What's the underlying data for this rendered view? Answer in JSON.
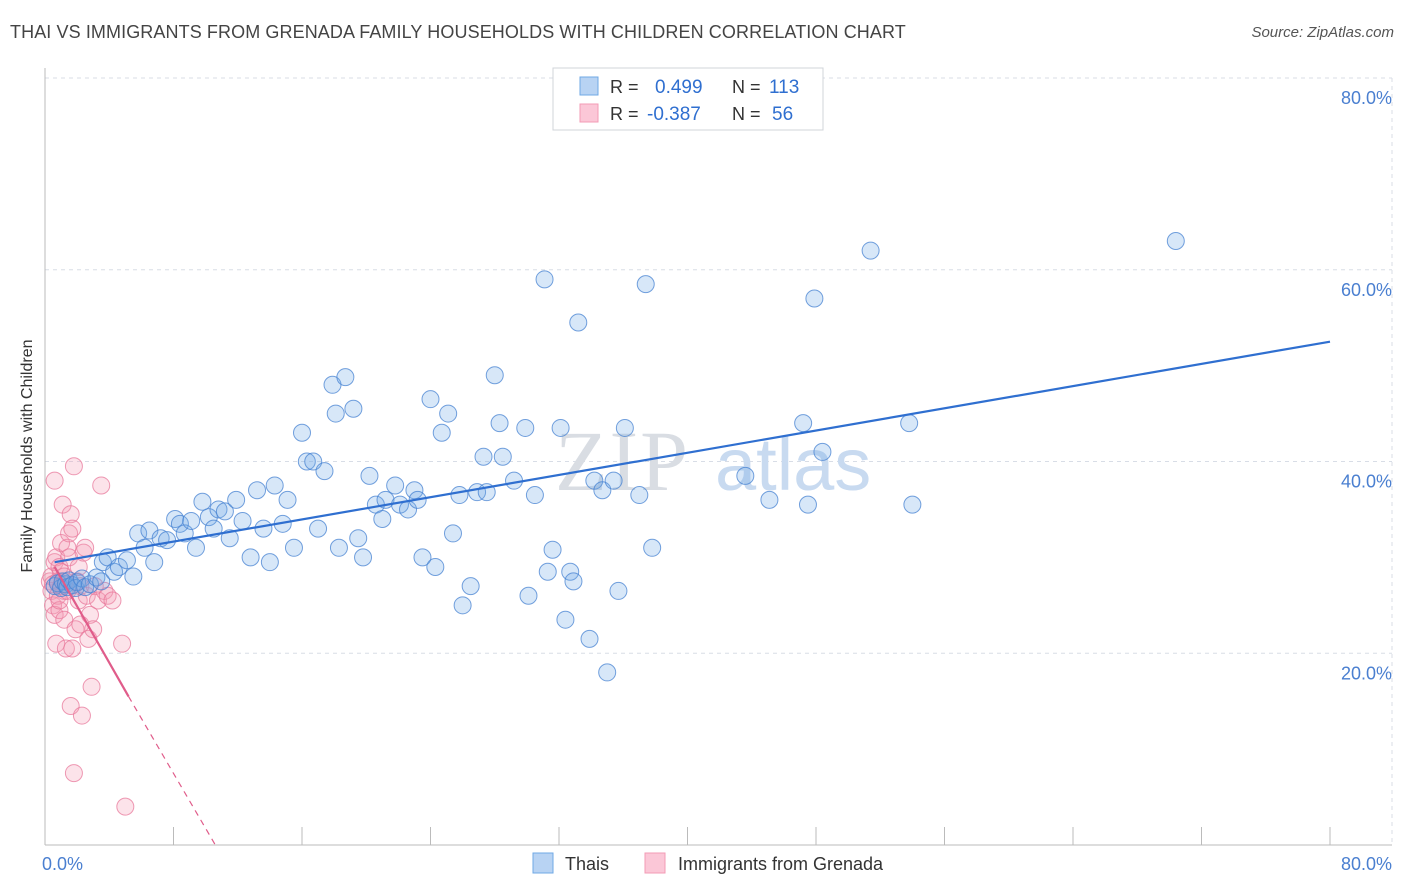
{
  "title": "THAI VS IMMIGRANTS FROM GRENADA FAMILY HOUSEHOLDS WITH CHILDREN CORRELATION CHART",
  "source": "Source: ZipAtlas.com",
  "watermark": "ZIPatlas",
  "colors": {
    "thai": "#6fa8e6",
    "thai_line": "#2f6fd0",
    "grenada": "#f39bb5",
    "grenada_line": "#e05c8a",
    "tick_label": "#4a7fd0",
    "grid": "#d8dde6"
  },
  "legend_top": [
    {
      "r_label": "R =",
      "r_value": "0.499",
      "n_label": "N =",
      "n_value": "113"
    },
    {
      "r_label": "R =",
      "r_value": "-0.387",
      "n_label": "N =",
      "n_value": "56"
    }
  ],
  "chart_data": {
    "type": "scatter",
    "title": "THAI VS IMMIGRANTS FROM GRENADA FAMILY HOUSEHOLDS WITH CHILDREN CORRELATION CHART",
    "xlabel": "",
    "ylabel": "Family Households with Children",
    "xlim": [
      0,
      80
    ],
    "ylim": [
      0,
      80
    ],
    "x_tick_labels": [
      "0.0%",
      "80.0%"
    ],
    "y_tick_labels": [
      "20.0%",
      "40.0%",
      "60.0%",
      "80.0%"
    ],
    "y_ticks": [
      20,
      40,
      60,
      80
    ],
    "grid": true,
    "legend_position": "top-center",
    "series": [
      {
        "name": "Thais",
        "stats": {
          "R": 0.499,
          "N": 113
        },
        "trend": {
          "x": [
            0.6,
            80
          ],
          "y": [
            29.5,
            52.5
          ]
        },
        "points": [
          [
            0.6,
            27.0
          ],
          [
            0.8,
            27.3
          ],
          [
            1.0,
            26.8
          ],
          [
            1.1,
            27.5
          ],
          [
            1.3,
            27.2
          ],
          [
            1.4,
            26.9
          ],
          [
            1.5,
            27.6
          ],
          [
            1.7,
            27.1
          ],
          [
            1.9,
            26.8
          ],
          [
            2.0,
            27.4
          ],
          [
            2.3,
            27.8
          ],
          [
            2.5,
            26.9
          ],
          [
            2.8,
            27.2
          ],
          [
            3.2,
            27.9
          ],
          [
            3.5,
            27.5
          ],
          [
            3.6,
            29.5
          ],
          [
            3.9,
            30.0
          ],
          [
            4.3,
            28.5
          ],
          [
            4.6,
            29.0
          ],
          [
            5.1,
            29.7
          ],
          [
            5.5,
            28.0
          ],
          [
            5.8,
            32.5
          ],
          [
            6.2,
            31.0
          ],
          [
            6.5,
            32.8
          ],
          [
            6.8,
            29.5
          ],
          [
            7.2,
            32.0
          ],
          [
            7.6,
            31.8
          ],
          [
            8.1,
            34.0
          ],
          [
            8.4,
            33.5
          ],
          [
            8.7,
            32.5
          ],
          [
            9.1,
            33.8
          ],
          [
            9.4,
            31.0
          ],
          [
            9.8,
            35.8
          ],
          [
            10.2,
            34.2
          ],
          [
            10.5,
            33.0
          ],
          [
            10.8,
            35.0
          ],
          [
            11.2,
            34.8
          ],
          [
            11.5,
            32.0
          ],
          [
            11.9,
            36.0
          ],
          [
            12.3,
            33.8
          ],
          [
            12.8,
            30.0
          ],
          [
            13.2,
            37.0
          ],
          [
            13.6,
            33.0
          ],
          [
            14.0,
            29.5
          ],
          [
            14.3,
            37.5
          ],
          [
            14.8,
            33.5
          ],
          [
            15.1,
            36.0
          ],
          [
            15.5,
            31.0
          ],
          [
            16.0,
            43.0
          ],
          [
            16.3,
            40.0
          ],
          [
            16.7,
            40.0
          ],
          [
            17.0,
            33.0
          ],
          [
            17.4,
            39.0
          ],
          [
            17.9,
            48.0
          ],
          [
            18.1,
            45.0
          ],
          [
            18.3,
            31.0
          ],
          [
            18.7,
            48.8
          ],
          [
            19.2,
            45.5
          ],
          [
            19.5,
            32.0
          ],
          [
            19.8,
            30.0
          ],
          [
            20.2,
            38.5
          ],
          [
            20.6,
            35.5
          ],
          [
            21.0,
            34.0
          ],
          [
            21.2,
            36.0
          ],
          [
            21.8,
            37.5
          ],
          [
            22.1,
            35.5
          ],
          [
            22.6,
            35.0
          ],
          [
            23.0,
            37.0
          ],
          [
            23.2,
            36.0
          ],
          [
            23.5,
            30.0
          ],
          [
            24.0,
            46.5
          ],
          [
            24.3,
            29.0
          ],
          [
            24.7,
            43.0
          ],
          [
            25.1,
            45.0
          ],
          [
            25.4,
            32.5
          ],
          [
            25.8,
            36.5
          ],
          [
            26.0,
            25.0
          ],
          [
            26.5,
            27.0
          ],
          [
            26.9,
            36.8
          ],
          [
            27.3,
            40.5
          ],
          [
            27.5,
            36.8
          ],
          [
            28.0,
            49.0
          ],
          [
            28.3,
            44.0
          ],
          [
            28.5,
            40.5
          ],
          [
            29.2,
            38.0
          ],
          [
            29.9,
            43.5
          ],
          [
            30.1,
            26.0
          ],
          [
            30.5,
            36.5
          ],
          [
            31.1,
            59.0
          ],
          [
            31.3,
            28.5
          ],
          [
            31.6,
            30.8
          ],
          [
            32.1,
            43.5
          ],
          [
            32.4,
            23.5
          ],
          [
            32.7,
            28.5
          ],
          [
            32.9,
            27.5
          ],
          [
            33.2,
            54.5
          ],
          [
            33.9,
            21.5
          ],
          [
            34.2,
            38.0
          ],
          [
            34.7,
            37.0
          ],
          [
            35.0,
            18.0
          ],
          [
            35.4,
            38.0
          ],
          [
            35.7,
            26.5
          ],
          [
            36.1,
            43.5
          ],
          [
            37.0,
            36.5
          ],
          [
            37.4,
            58.5
          ],
          [
            37.8,
            31.0
          ],
          [
            43.6,
            38.5
          ],
          [
            45.1,
            36.0
          ],
          [
            47.5,
            35.5
          ],
          [
            47.9,
            57.0
          ],
          [
            48.4,
            41.0
          ],
          [
            51.4,
            62.0
          ],
          [
            54.0,
            35.5
          ],
          [
            70.4,
            63.0
          ],
          [
            47.2,
            44.0
          ],
          [
            53.8,
            44.0
          ]
        ]
      },
      {
        "name": "Immigrants from Grenada",
        "stats": {
          "R": -0.387,
          "N": 56
        },
        "trend": {
          "x": [
            0.6,
            5.2
          ],
          "y": [
            29.0,
            15.5
          ],
          "dash_to": {
            "x": 12.0,
            "y": -4.0
          }
        },
        "points": [
          [
            0.3,
            27.5
          ],
          [
            0.4,
            28.0
          ],
          [
            0.4,
            26.5
          ],
          [
            0.5,
            25.0
          ],
          [
            0.5,
            27.2
          ],
          [
            0.6,
            29.5
          ],
          [
            0.6,
            24.0
          ],
          [
            0.6,
            38.0
          ],
          [
            0.7,
            30.0
          ],
          [
            0.7,
            21.0
          ],
          [
            0.8,
            27.5
          ],
          [
            0.8,
            26.0
          ],
          [
            0.9,
            24.5
          ],
          [
            0.9,
            29.0
          ],
          [
            1.0,
            31.5
          ],
          [
            1.0,
            28.5
          ],
          [
            1.1,
            35.5
          ],
          [
            1.2,
            23.5
          ],
          [
            1.2,
            26.5
          ],
          [
            1.3,
            20.5
          ],
          [
            1.3,
            27.5
          ],
          [
            1.4,
            31.0
          ],
          [
            1.5,
            30.0
          ],
          [
            1.5,
            32.5
          ],
          [
            1.6,
            34.5
          ],
          [
            1.6,
            14.5
          ],
          [
            1.7,
            20.5
          ],
          [
            1.7,
            33.0
          ],
          [
            1.8,
            39.5
          ],
          [
            1.8,
            7.5
          ],
          [
            1.9,
            22.5
          ],
          [
            2.0,
            27.5
          ],
          [
            2.1,
            29.0
          ],
          [
            2.1,
            25.5
          ],
          [
            2.2,
            27.0
          ],
          [
            2.3,
            13.5
          ],
          [
            2.4,
            30.5
          ],
          [
            2.5,
            31.0
          ],
          [
            2.6,
            26.0
          ],
          [
            2.7,
            21.5
          ],
          [
            2.8,
            24.0
          ],
          [
            2.9,
            16.5
          ],
          [
            3.0,
            22.5
          ],
          [
            3.1,
            27.0
          ],
          [
            3.3,
            25.5
          ],
          [
            3.5,
            37.5
          ],
          [
            3.7,
            26.5
          ],
          [
            3.9,
            26.0
          ],
          [
            4.2,
            25.5
          ],
          [
            4.8,
            21.0
          ],
          [
            5.0,
            4.0
          ],
          [
            1.0,
            27.0
          ],
          [
            1.2,
            28.0
          ],
          [
            0.9,
            25.5
          ],
          [
            1.4,
            26.5
          ],
          [
            2.2,
            23.0
          ]
        ]
      }
    ]
  },
  "legend_bottom": [
    {
      "label": "Thais"
    },
    {
      "label": "Immigrants from Grenada"
    }
  ]
}
